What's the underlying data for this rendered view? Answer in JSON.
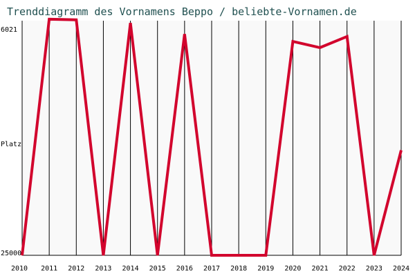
{
  "colors": {
    "background": "#ffffff",
    "plot_background": "#f9f9f9",
    "grid": "#000000",
    "line": "#d2042d",
    "title": "#205050",
    "text": "#000000"
  },
  "chart_data": {
    "type": "line",
    "title": "Trenddiagramm des Vornamens Beppo / beliebte-Vornamen.de",
    "ylabel": "Platz",
    "xlabel": "",
    "y_axis_inverted": true,
    "ylim": [
      6021,
      25000
    ],
    "y_ticks": [
      "6021",
      "25000"
    ],
    "grid": "vertical",
    "x": [
      "2010",
      "2011",
      "2012",
      "2013",
      "2014",
      "2015",
      "2016",
      "2017",
      "2018",
      "2019",
      "2020",
      "2021",
      "2022",
      "2023",
      "2024"
    ],
    "series": [
      {
        "values": [
          25000,
          5900,
          5950,
          25000,
          6200,
          25000,
          7100,
          25000,
          25000,
          25000,
          7700,
          8200,
          7300,
          25000,
          16500
        ]
      }
    ]
  }
}
